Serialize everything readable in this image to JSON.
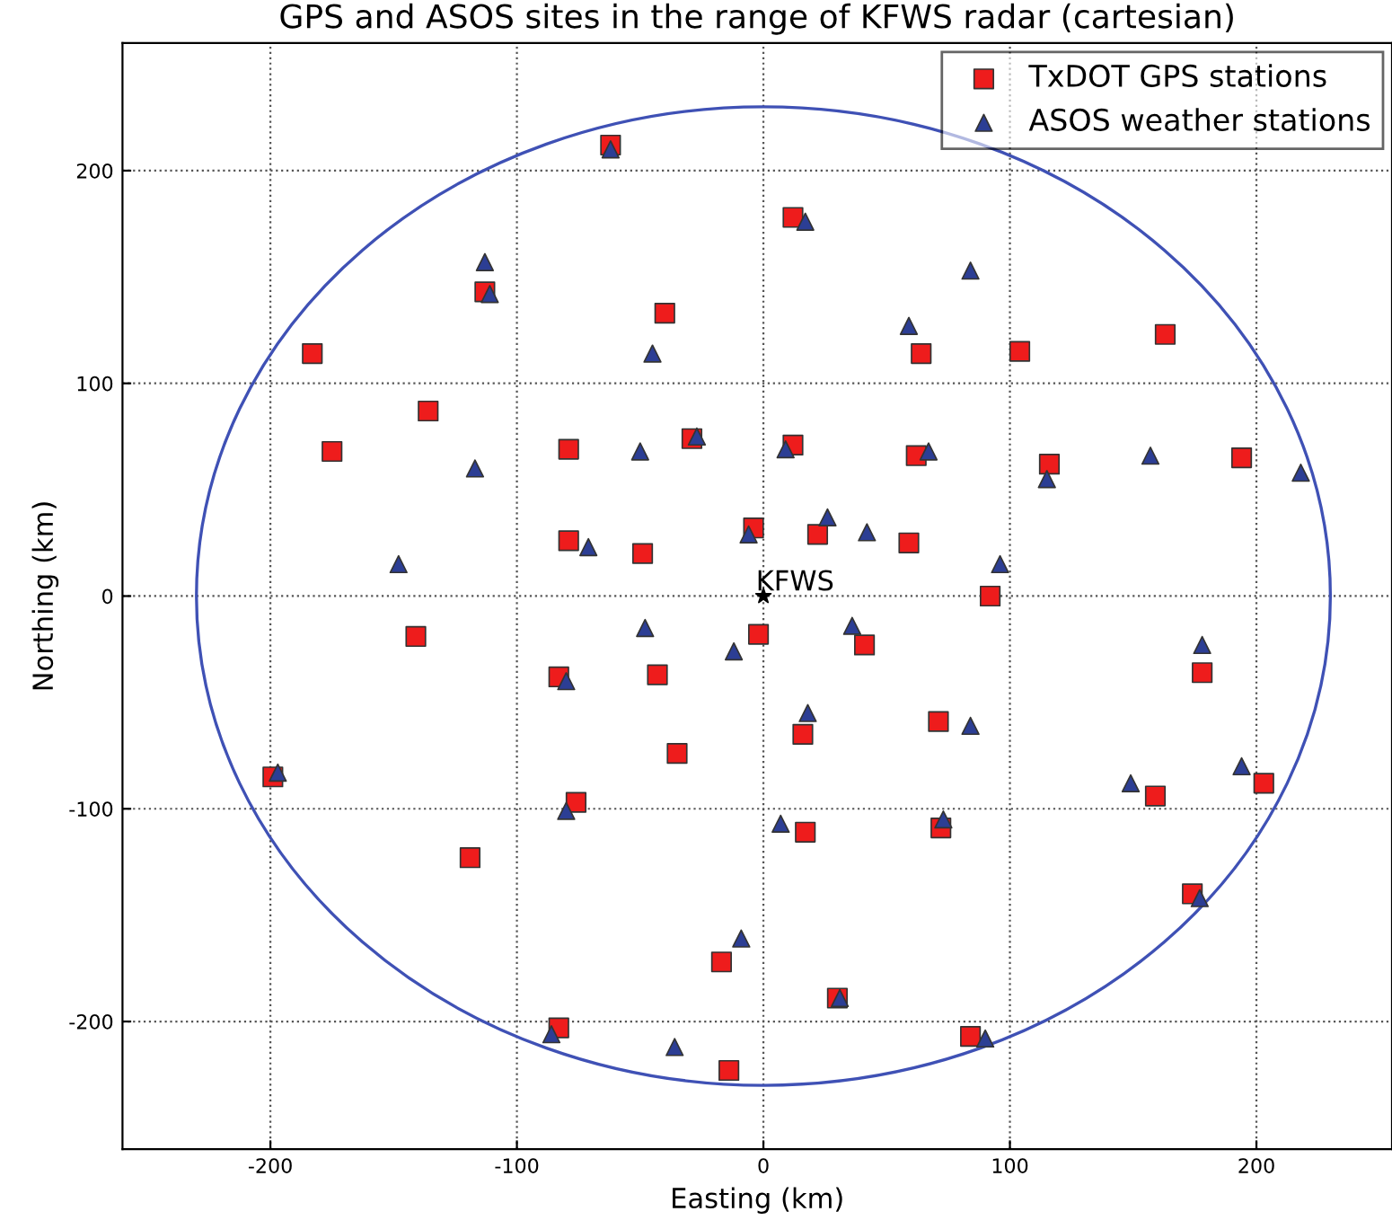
{
  "chart_data": {
    "type": "scatter",
    "title": "GPS and ASOS sites in the range of KFWS radar (cartesian)",
    "xlabel": "Easting (km)",
    "ylabel": "Northing (km)",
    "xlim": [
      -260,
      255
    ],
    "ylim": [
      -260,
      260
    ],
    "xticks": [
      -200,
      -100,
      0,
      100,
      200
    ],
    "yticks": [
      -200,
      -100,
      0,
      100,
      200
    ],
    "grid": true,
    "legend": "top right",
    "annotations": [
      {
        "text": "KFWS",
        "x": 0,
        "y": 0
      }
    ],
    "series": [
      {
        "name": "TxDOT GPS stations",
        "type": "scatter",
        "color": "#ee1c1c",
        "marker": "square",
        "x": [
          -62,
          12,
          -183,
          -113,
          -40,
          -136,
          -175,
          -79,
          -29,
          12,
          -79,
          -49,
          -4,
          22,
          64,
          104,
          163,
          116,
          194,
          62,
          59,
          92,
          -141,
          -83,
          -43,
          -2,
          41,
          -35,
          -76,
          -119,
          -199,
          -83,
          -17,
          -14,
          16,
          17,
          71,
          72,
          30,
          84,
          159,
          178,
          203,
          174
        ],
        "values": [
          212,
          178,
          114,
          143,
          133,
          87,
          68,
          69,
          74,
          71,
          26,
          20,
          32,
          29,
          114,
          115,
          123,
          62,
          65,
          66,
          25,
          0,
          -19,
          -38,
          -37,
          -18,
          -23,
          -74,
          -97,
          -123,
          -85,
          -203,
          -172,
          -223,
          -65,
          -111,
          -59,
          -109,
          -189,
          -207,
          -94,
          -36,
          -88,
          -140
        ]
      },
      {
        "name": "ASOS weather stations",
        "type": "scatter",
        "color": "#2c3e94",
        "marker": "triangle",
        "x": [
          -62,
          17,
          -113,
          -111,
          -45,
          84,
          59,
          -117,
          -50,
          -27,
          9,
          67,
          157,
          115,
          218,
          -148,
          -71,
          -6,
          26,
          42,
          96,
          -48,
          -12,
          -80,
          36,
          18,
          84,
          -197,
          -80,
          7,
          73,
          149,
          178,
          194,
          177,
          -9,
          31,
          -86,
          -36,
          90
        ],
        "values": [
          210,
          176,
          157,
          142,
          114,
          153,
          127,
          60,
          68,
          75,
          69,
          68,
          66,
          55,
          58,
          15,
          23,
          29,
          37,
          30,
          15,
          -15,
          -26,
          -40,
          -14,
          -55,
          -61,
          -83,
          -101,
          -107,
          -105,
          -88,
          -23,
          -80,
          -142,
          -161,
          -189,
          -206,
          -212,
          -208
        ]
      },
      {
        "type": "scatter",
        "color": "#000000",
        "marker": "star",
        "x": [
          0
        ],
        "values": [
          0
        ]
      }
    ]
  }
}
